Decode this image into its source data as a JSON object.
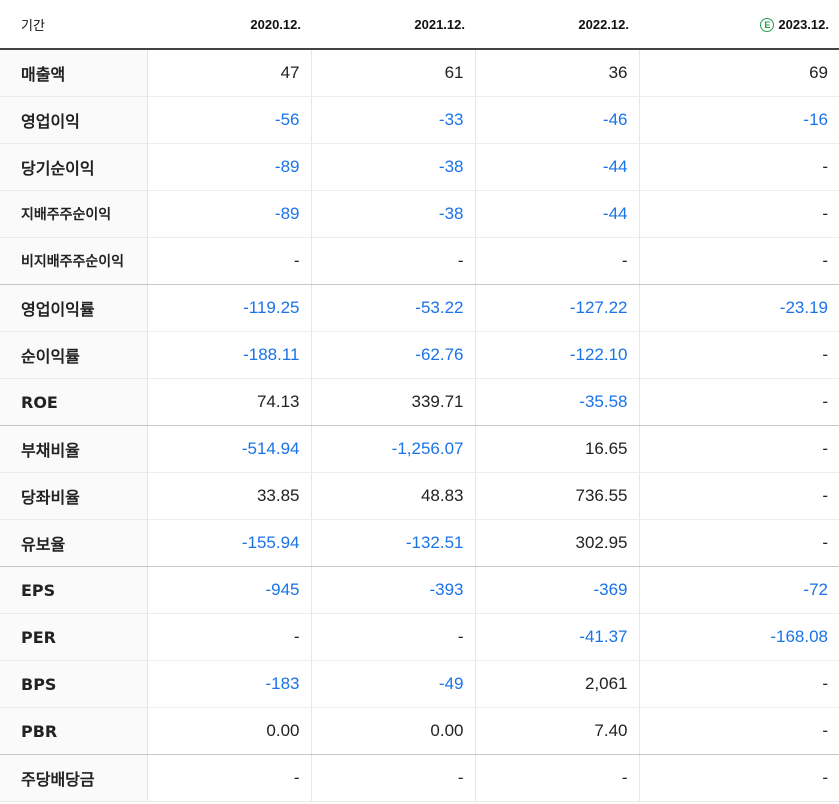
{
  "table": {
    "period_label": "기간",
    "estimate_badge": "E",
    "columns": [
      "2020.12.",
      "2021.12.",
      "2022.12.",
      "2023.12."
    ],
    "rows": [
      {
        "label": "매출액",
        "values": [
          "47",
          "61",
          "36",
          "69"
        ]
      },
      {
        "label": "영업이익",
        "values": [
          "-56",
          "-33",
          "-46",
          "-16"
        ]
      },
      {
        "label": "당기순이익",
        "values": [
          "-89",
          "-38",
          "-44",
          "-"
        ]
      },
      {
        "label": "지배주주순이익",
        "values": [
          "-89",
          "-38",
          "-44",
          "-"
        ]
      },
      {
        "label": "비지배주주순이익",
        "values": [
          "-",
          "-",
          "-",
          "-"
        ]
      },
      {
        "label": "영업이익률",
        "values": [
          "-119.25",
          "-53.22",
          "-127.22",
          "-23.19"
        ]
      },
      {
        "label": "순이익률",
        "values": [
          "-188.11",
          "-62.76",
          "-122.10",
          "-"
        ]
      },
      {
        "label": "ROE",
        "values": [
          "74.13",
          "339.71",
          "-35.58",
          "-"
        ]
      },
      {
        "label": "부채비율",
        "values": [
          "-514.94",
          "-1,256.07",
          "16.65",
          "-"
        ]
      },
      {
        "label": "당좌비율",
        "values": [
          "33.85",
          "48.83",
          "736.55",
          "-"
        ]
      },
      {
        "label": "유보율",
        "values": [
          "-155.94",
          "-132.51",
          "302.95",
          "-"
        ]
      },
      {
        "label": "EPS",
        "values": [
          "-945",
          "-393",
          "-369",
          "-72"
        ]
      },
      {
        "label": "PER",
        "values": [
          "-",
          "-",
          "-41.37",
          "-168.08"
        ]
      },
      {
        "label": "BPS",
        "values": [
          "-183",
          "-49",
          "2,061",
          "-"
        ]
      },
      {
        "label": "PBR",
        "values": [
          "0.00",
          "0.00",
          "7.40",
          "-"
        ]
      },
      {
        "label": "주당배당금",
        "values": [
          "-",
          "-",
          "-",
          "-"
        ]
      }
    ]
  },
  "colors": {
    "negative": "#1a73e8",
    "estimate": "#21a04a"
  }
}
